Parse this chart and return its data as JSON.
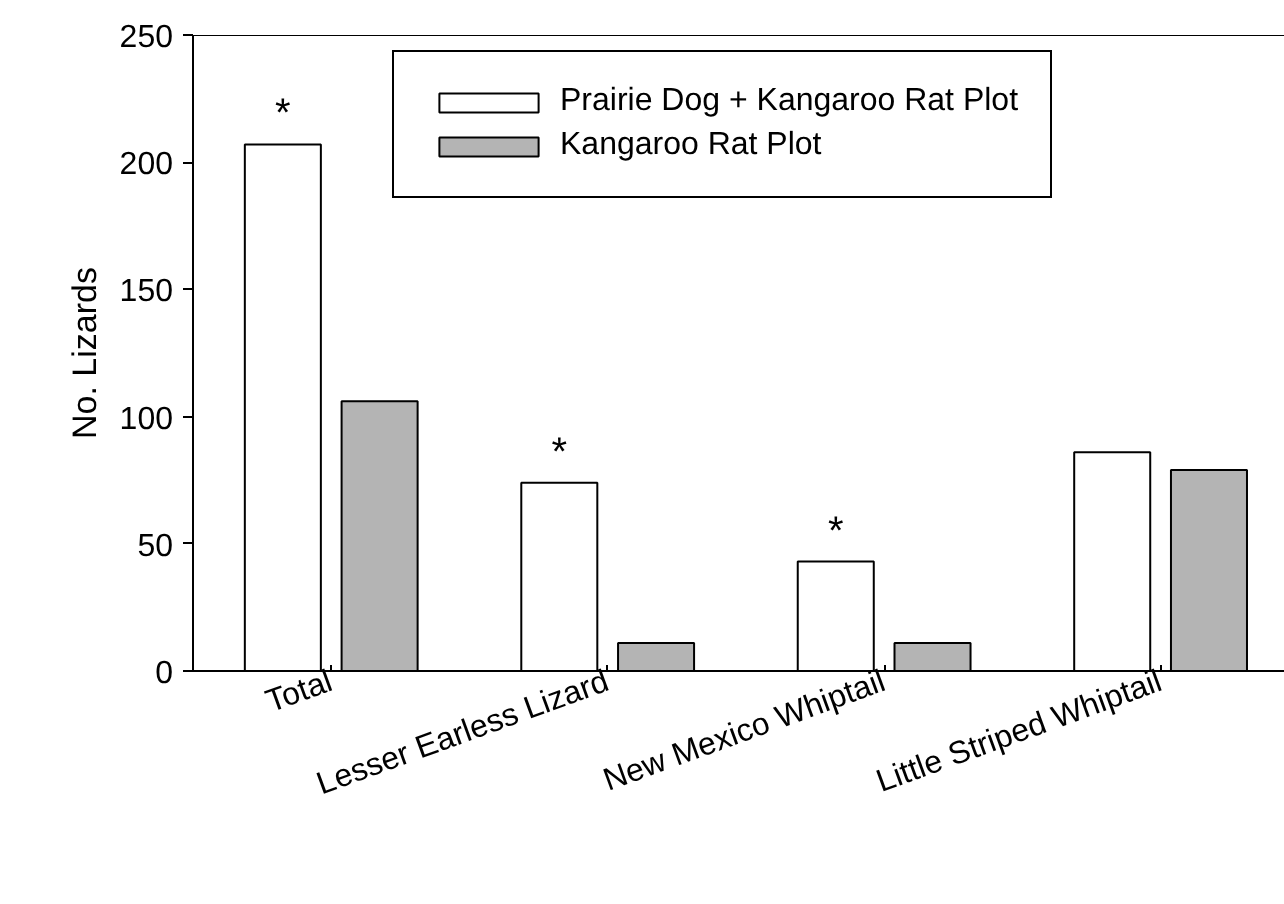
{
  "chart_data": {
    "type": "bar",
    "ylabel": "No. Lizards",
    "categories": [
      "Total",
      "Lesser Earless Lizard",
      "New Mexico Whiptail",
      "Little Striped Whiptail"
    ],
    "series": [
      {
        "name": "Prairie Dog + Kangaroo Rat Plot",
        "color": "#ffffff",
        "values": [
          207,
          74,
          43,
          86
        ],
        "value_labels": [
          "*",
          "*",
          "*",
          null
        ]
      },
      {
        "name": "Kangaroo Rat Plot",
        "color": "#b4b4b4",
        "values": [
          106,
          11,
          11,
          79
        ]
      }
    ],
    "ylim": [
      0,
      250
    ],
    "yticks": [
      0,
      50,
      100,
      150,
      200,
      250
    ],
    "legend": "top right",
    "grid": false
  }
}
